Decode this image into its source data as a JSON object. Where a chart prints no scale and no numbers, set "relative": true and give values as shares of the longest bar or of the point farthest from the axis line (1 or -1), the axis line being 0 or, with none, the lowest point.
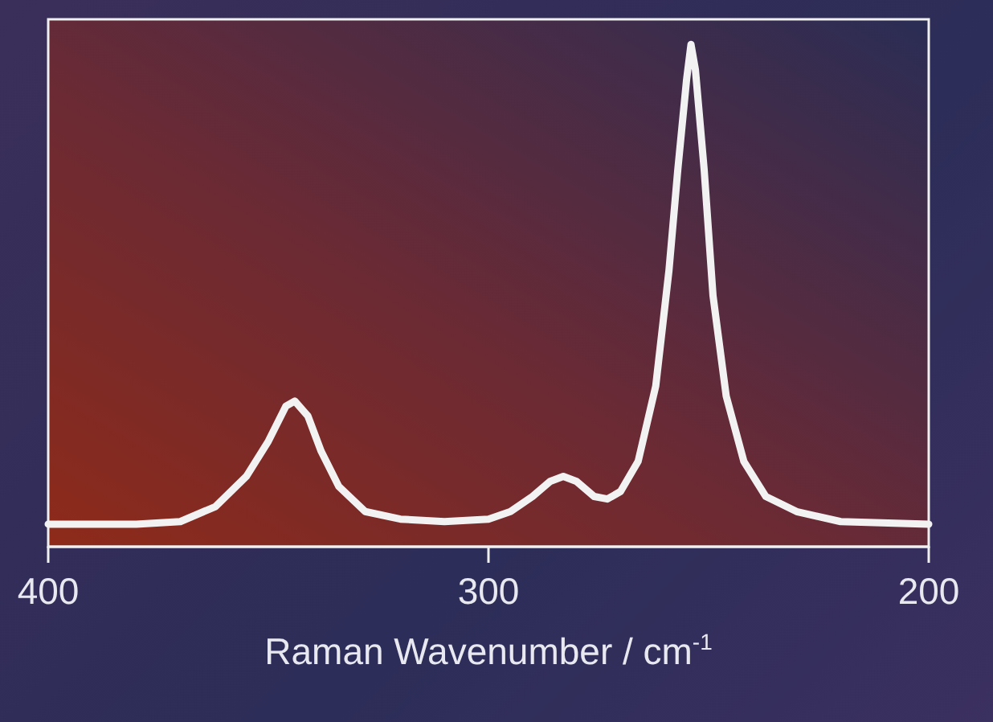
{
  "chart_data": {
    "type": "line",
    "xlabel": "Raman Wavenumber / cm$^{-1}$",
    "relative": true,
    "xlim": [
      400,
      200
    ],
    "xticks": [
      400,
      300,
      200
    ],
    "grid": false,
    "marker": "none",
    "line_style": "solid",
    "series": [
      {
        "color": "#f2f2f2",
        "x": [
          400,
          380,
          370,
          362,
          355,
          350,
          346,
          344,
          341,
          338,
          334,
          328,
          320,
          310,
          300,
          295,
          290,
          286,
          283,
          280,
          276,
          273,
          270,
          266,
          262,
          259,
          257,
          255,
          254,
          253,
          251,
          249,
          246,
          242,
          237,
          230,
          220,
          200
        ],
        "values": [
          0.045,
          0.045,
          0.05,
          0.08,
          0.14,
          0.21,
          0.28,
          0.29,
          0.26,
          0.19,
          0.12,
          0.07,
          0.055,
          0.05,
          0.055,
          0.07,
          0.1,
          0.13,
          0.14,
          0.13,
          0.1,
          0.095,
          0.11,
          0.17,
          0.32,
          0.55,
          0.75,
          0.93,
          1,
          0.95,
          0.75,
          0.5,
          0.3,
          0.17,
          0.1,
          0.07,
          0.05,
          0.045
        ]
      }
    ]
  }
}
